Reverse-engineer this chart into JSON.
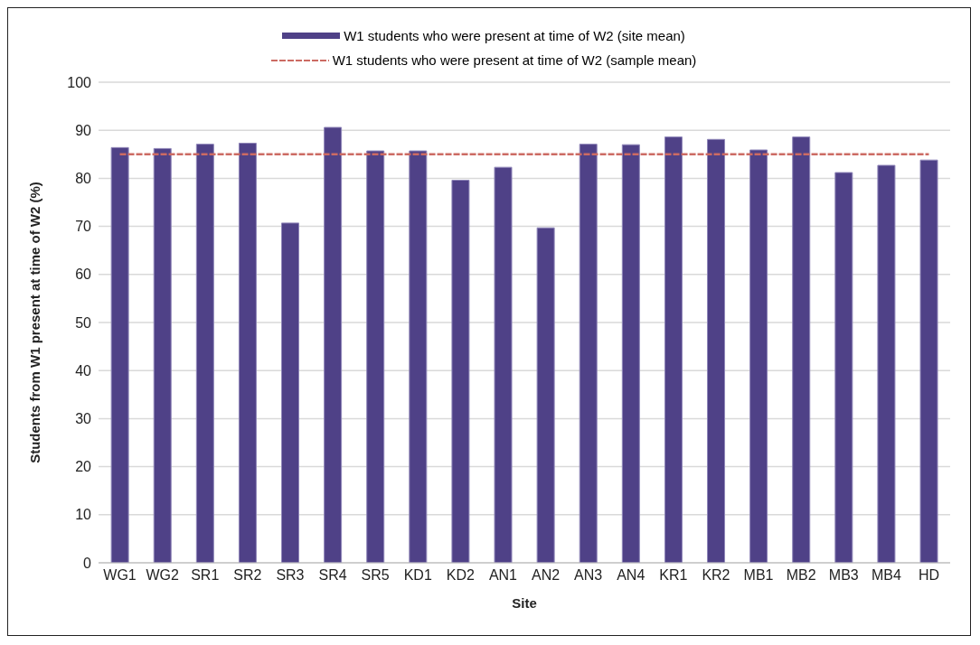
{
  "chart_data": {
    "type": "bar",
    "xlabel": "Site",
    "ylabel": "Students from W1 present at time of W2 (%)",
    "categories": [
      "WG1",
      "WG2",
      "SR1",
      "SR2",
      "SR3",
      "SR4",
      "SR5",
      "KD1",
      "KD2",
      "AN1",
      "AN2",
      "AN3",
      "AN4",
      "KR1",
      "KR2",
      "MB1",
      "MB2",
      "MB3",
      "MB4",
      "HD"
    ],
    "series": [
      {
        "name": "W1 students who were present at time of W2 (site mean)",
        "color": "#4f4187",
        "values": [
          86.4,
          86.2,
          87.1,
          87.3,
          70.7,
          90.6,
          85.7,
          85.7,
          79.6,
          82.3,
          69.7,
          87.1,
          87.0,
          88.6,
          88.1,
          85.9,
          88.6,
          81.2,
          82.7,
          83.8
        ]
      },
      {
        "name": "W1 students who were present at time of W2 (sample mean)",
        "type": "line",
        "color": "#cc6b63",
        "line_style": "dashed",
        "marker": "none",
        "values": [
          85,
          85,
          85,
          85,
          85,
          85,
          85,
          85,
          85,
          85,
          85,
          85,
          85,
          85,
          85,
          85,
          85,
          85,
          85,
          85
        ]
      }
    ],
    "ylim": [
      0,
      100
    ],
    "yticks": [
      0,
      10,
      20,
      30,
      40,
      50,
      60,
      70,
      80,
      90,
      100
    ],
    "grid": "y",
    "legend": "top"
  }
}
